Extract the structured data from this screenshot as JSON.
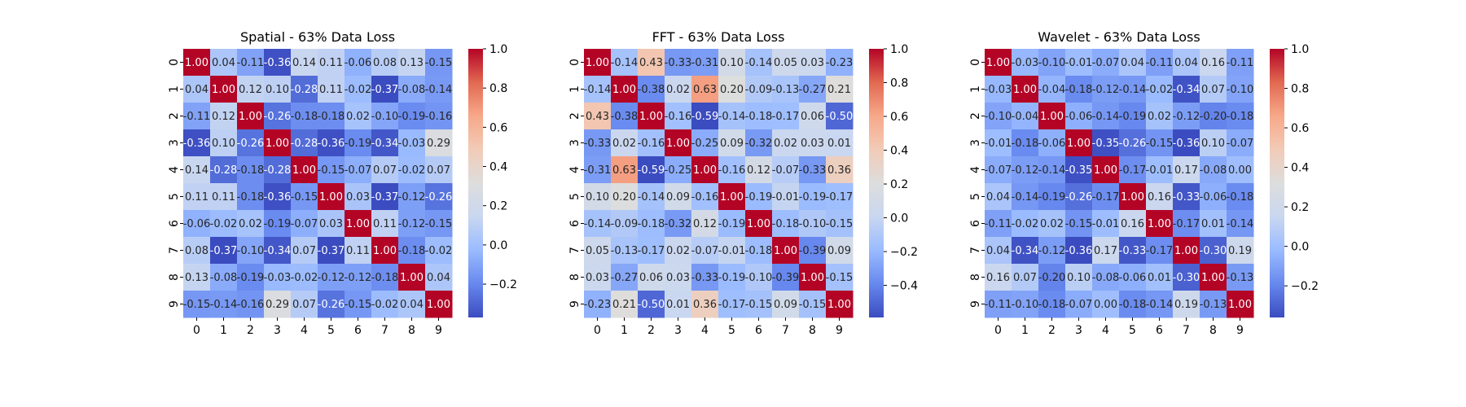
{
  "figure": {
    "colormap": "coolwarm",
    "colormap_stops": [
      "#3b4cc0",
      "#6788ee",
      "#9abbff",
      "#c9d7f0",
      "#dddddd",
      "#f2cbb7",
      "#f7a889",
      "#e26952",
      "#b40426"
    ],
    "text_dark": "#262626",
    "text_light": "#ffffff"
  },
  "chart_data": [
    {
      "type": "heatmap",
      "title": "Spatial - 63% Data Loss",
      "xlabels": [
        "0",
        "1",
        "2",
        "3",
        "4",
        "5",
        "6",
        "7",
        "8",
        "9"
      ],
      "ylabels": [
        "0",
        "1",
        "2",
        "3",
        "4",
        "5",
        "6",
        "7",
        "8",
        "9"
      ],
      "vmin": -0.37,
      "vmax": 1.0,
      "colorbar_ticks": [
        -0.2,
        0.0,
        0.2,
        0.4,
        0.6,
        0.8,
        1.0
      ],
      "colorbar_tick_labels": [
        "−0.2",
        "0.0",
        "0.2",
        "0.4",
        "0.6",
        "0.8",
        "1.0"
      ],
      "value_format": "2dp",
      "values": [
        [
          1.0,
          0.04,
          -0.11,
          -0.36,
          0.14,
          0.11,
          -0.06,
          0.08,
          0.13,
          -0.15
        ],
        [
          0.04,
          1.0,
          0.12,
          0.1,
          -0.28,
          0.11,
          -0.02,
          -0.37,
          -0.08,
          -0.14
        ],
        [
          -0.11,
          0.12,
          1.0,
          -0.26,
          -0.18,
          -0.18,
          0.02,
          -0.1,
          -0.19,
          -0.16
        ],
        [
          -0.36,
          0.1,
          -0.26,
          1.0,
          -0.28,
          -0.36,
          -0.19,
          -0.34,
          -0.03,
          0.29
        ],
        [
          0.14,
          -0.28,
          -0.18,
          -0.28,
          1.0,
          -0.15,
          -0.07,
          0.07,
          -0.02,
          0.07
        ],
        [
          0.11,
          0.11,
          -0.18,
          -0.36,
          -0.15,
          1.0,
          0.03,
          -0.37,
          -0.12,
          -0.26
        ],
        [
          -0.06,
          -0.02,
          0.02,
          -0.19,
          -0.07,
          0.03,
          1.0,
          0.11,
          -0.12,
          -0.15
        ],
        [
          0.08,
          -0.37,
          -0.1,
          -0.34,
          0.07,
          -0.37,
          0.11,
          1.0,
          -0.18,
          -0.02
        ],
        [
          0.13,
          -0.08,
          -0.19,
          -0.03,
          -0.02,
          -0.12,
          -0.12,
          -0.18,
          1.0,
          0.04
        ],
        [
          -0.15,
          -0.14,
          -0.16,
          0.29,
          0.07,
          -0.26,
          -0.15,
          -0.02,
          0.04,
          1.0
        ]
      ]
    },
    {
      "type": "heatmap",
      "title": "FFT - 63% Data Loss",
      "xlabels": [
        "0",
        "1",
        "2",
        "3",
        "4",
        "5",
        "6",
        "7",
        "8",
        "9"
      ],
      "ylabels": [
        "0",
        "1",
        "2",
        "3",
        "4",
        "5",
        "6",
        "7",
        "8",
        "9"
      ],
      "vmin": -0.59,
      "vmax": 1.0,
      "colorbar_ticks": [
        -0.4,
        -0.2,
        0.0,
        0.2,
        0.4,
        0.6,
        0.8,
        1.0
      ],
      "colorbar_tick_labels": [
        "−0.4",
        "−0.2",
        "0.0",
        "0.2",
        "0.4",
        "0.6",
        "0.8",
        "1.0"
      ],
      "value_format": "2dp",
      "values": [
        [
          1.0,
          -0.14,
          0.43,
          -0.33,
          -0.31,
          0.1,
          -0.14,
          0.05,
          0.03,
          -0.23
        ],
        [
          -0.14,
          1.0,
          -0.38,
          0.02,
          0.63,
          0.2,
          -0.09,
          -0.13,
          -0.27,
          0.21
        ],
        [
          0.43,
          -0.38,
          1.0,
          -0.16,
          -0.59,
          -0.14,
          -0.18,
          -0.17,
          0.06,
          -0.5
        ],
        [
          -0.33,
          0.02,
          -0.16,
          1.0,
          -0.25,
          0.09,
          -0.32,
          0.02,
          0.03,
          0.01
        ],
        [
          -0.31,
          0.63,
          -0.59,
          -0.25,
          1.0,
          -0.16,
          0.12,
          -0.07,
          -0.33,
          0.36
        ],
        [
          0.1,
          0.2,
          -0.14,
          0.09,
          -0.16,
          1.0,
          -0.19,
          -0.01,
          -0.19,
          -0.17
        ],
        [
          -0.14,
          -0.09,
          -0.18,
          -0.32,
          0.12,
          -0.19,
          1.0,
          -0.18,
          -0.1,
          -0.15
        ],
        [
          0.05,
          -0.13,
          -0.17,
          0.02,
          -0.07,
          -0.01,
          -0.18,
          1.0,
          -0.39,
          0.09
        ],
        [
          0.03,
          -0.27,
          0.06,
          0.03,
          -0.33,
          -0.19,
          -0.1,
          -0.39,
          1.0,
          -0.15
        ],
        [
          -0.23,
          0.21,
          -0.5,
          0.01,
          0.36,
          -0.17,
          -0.15,
          0.09,
          -0.15,
          1.0
        ]
      ]
    },
    {
      "type": "heatmap",
      "title": "Wavelet - 63% Data Loss",
      "xlabels": [
        "0",
        "1",
        "2",
        "3",
        "4",
        "5",
        "6",
        "7",
        "8",
        "9"
      ],
      "ylabels": [
        "0",
        "1",
        "2",
        "3",
        "4",
        "5",
        "6",
        "7",
        "8",
        "9"
      ],
      "vmin": -0.36,
      "vmax": 1.0,
      "colorbar_ticks": [
        -0.2,
        0.0,
        0.2,
        0.4,
        0.6,
        0.8,
        1.0
      ],
      "colorbar_tick_labels": [
        "−0.2",
        "0.0",
        "0.2",
        "0.4",
        "0.6",
        "0.8",
        "1.0"
      ],
      "value_format": "2dp",
      "values": [
        [
          1.0,
          -0.03,
          -0.1,
          -0.01,
          -0.07,
          0.04,
          -0.11,
          0.04,
          0.16,
          -0.11
        ],
        [
          -0.03,
          1.0,
          -0.04,
          -0.18,
          -0.12,
          -0.14,
          -0.02,
          -0.34,
          0.07,
          -0.1
        ],
        [
          -0.1,
          -0.04,
          1.0,
          -0.06,
          -0.14,
          -0.19,
          0.02,
          -0.12,
          -0.2,
          -0.18
        ],
        [
          -0.01,
          -0.18,
          -0.06,
          1.0,
          -0.35,
          -0.26,
          -0.15,
          -0.36,
          0.1,
          -0.07
        ],
        [
          -0.07,
          -0.12,
          -0.14,
          -0.35,
          1.0,
          -0.17,
          -0.01,
          0.17,
          -0.08,
          0.0
        ],
        [
          0.04,
          -0.14,
          -0.19,
          -0.26,
          -0.17,
          1.0,
          0.16,
          -0.33,
          -0.06,
          -0.18
        ],
        [
          -0.11,
          -0.02,
          0.02,
          -0.15,
          -0.01,
          0.16,
          1.0,
          -0.17,
          0.01,
          -0.14
        ],
        [
          0.04,
          -0.34,
          -0.12,
          -0.36,
          0.17,
          -0.33,
          -0.17,
          1.0,
          -0.3,
          0.19
        ],
        [
          0.16,
          0.07,
          -0.2,
          0.1,
          -0.08,
          -0.06,
          0.01,
          -0.3,
          1.0,
          -0.13
        ],
        [
          -0.11,
          -0.1,
          -0.18,
          -0.07,
          0.0,
          -0.18,
          -0.14,
          0.19,
          -0.13,
          1.0
        ]
      ]
    }
  ]
}
